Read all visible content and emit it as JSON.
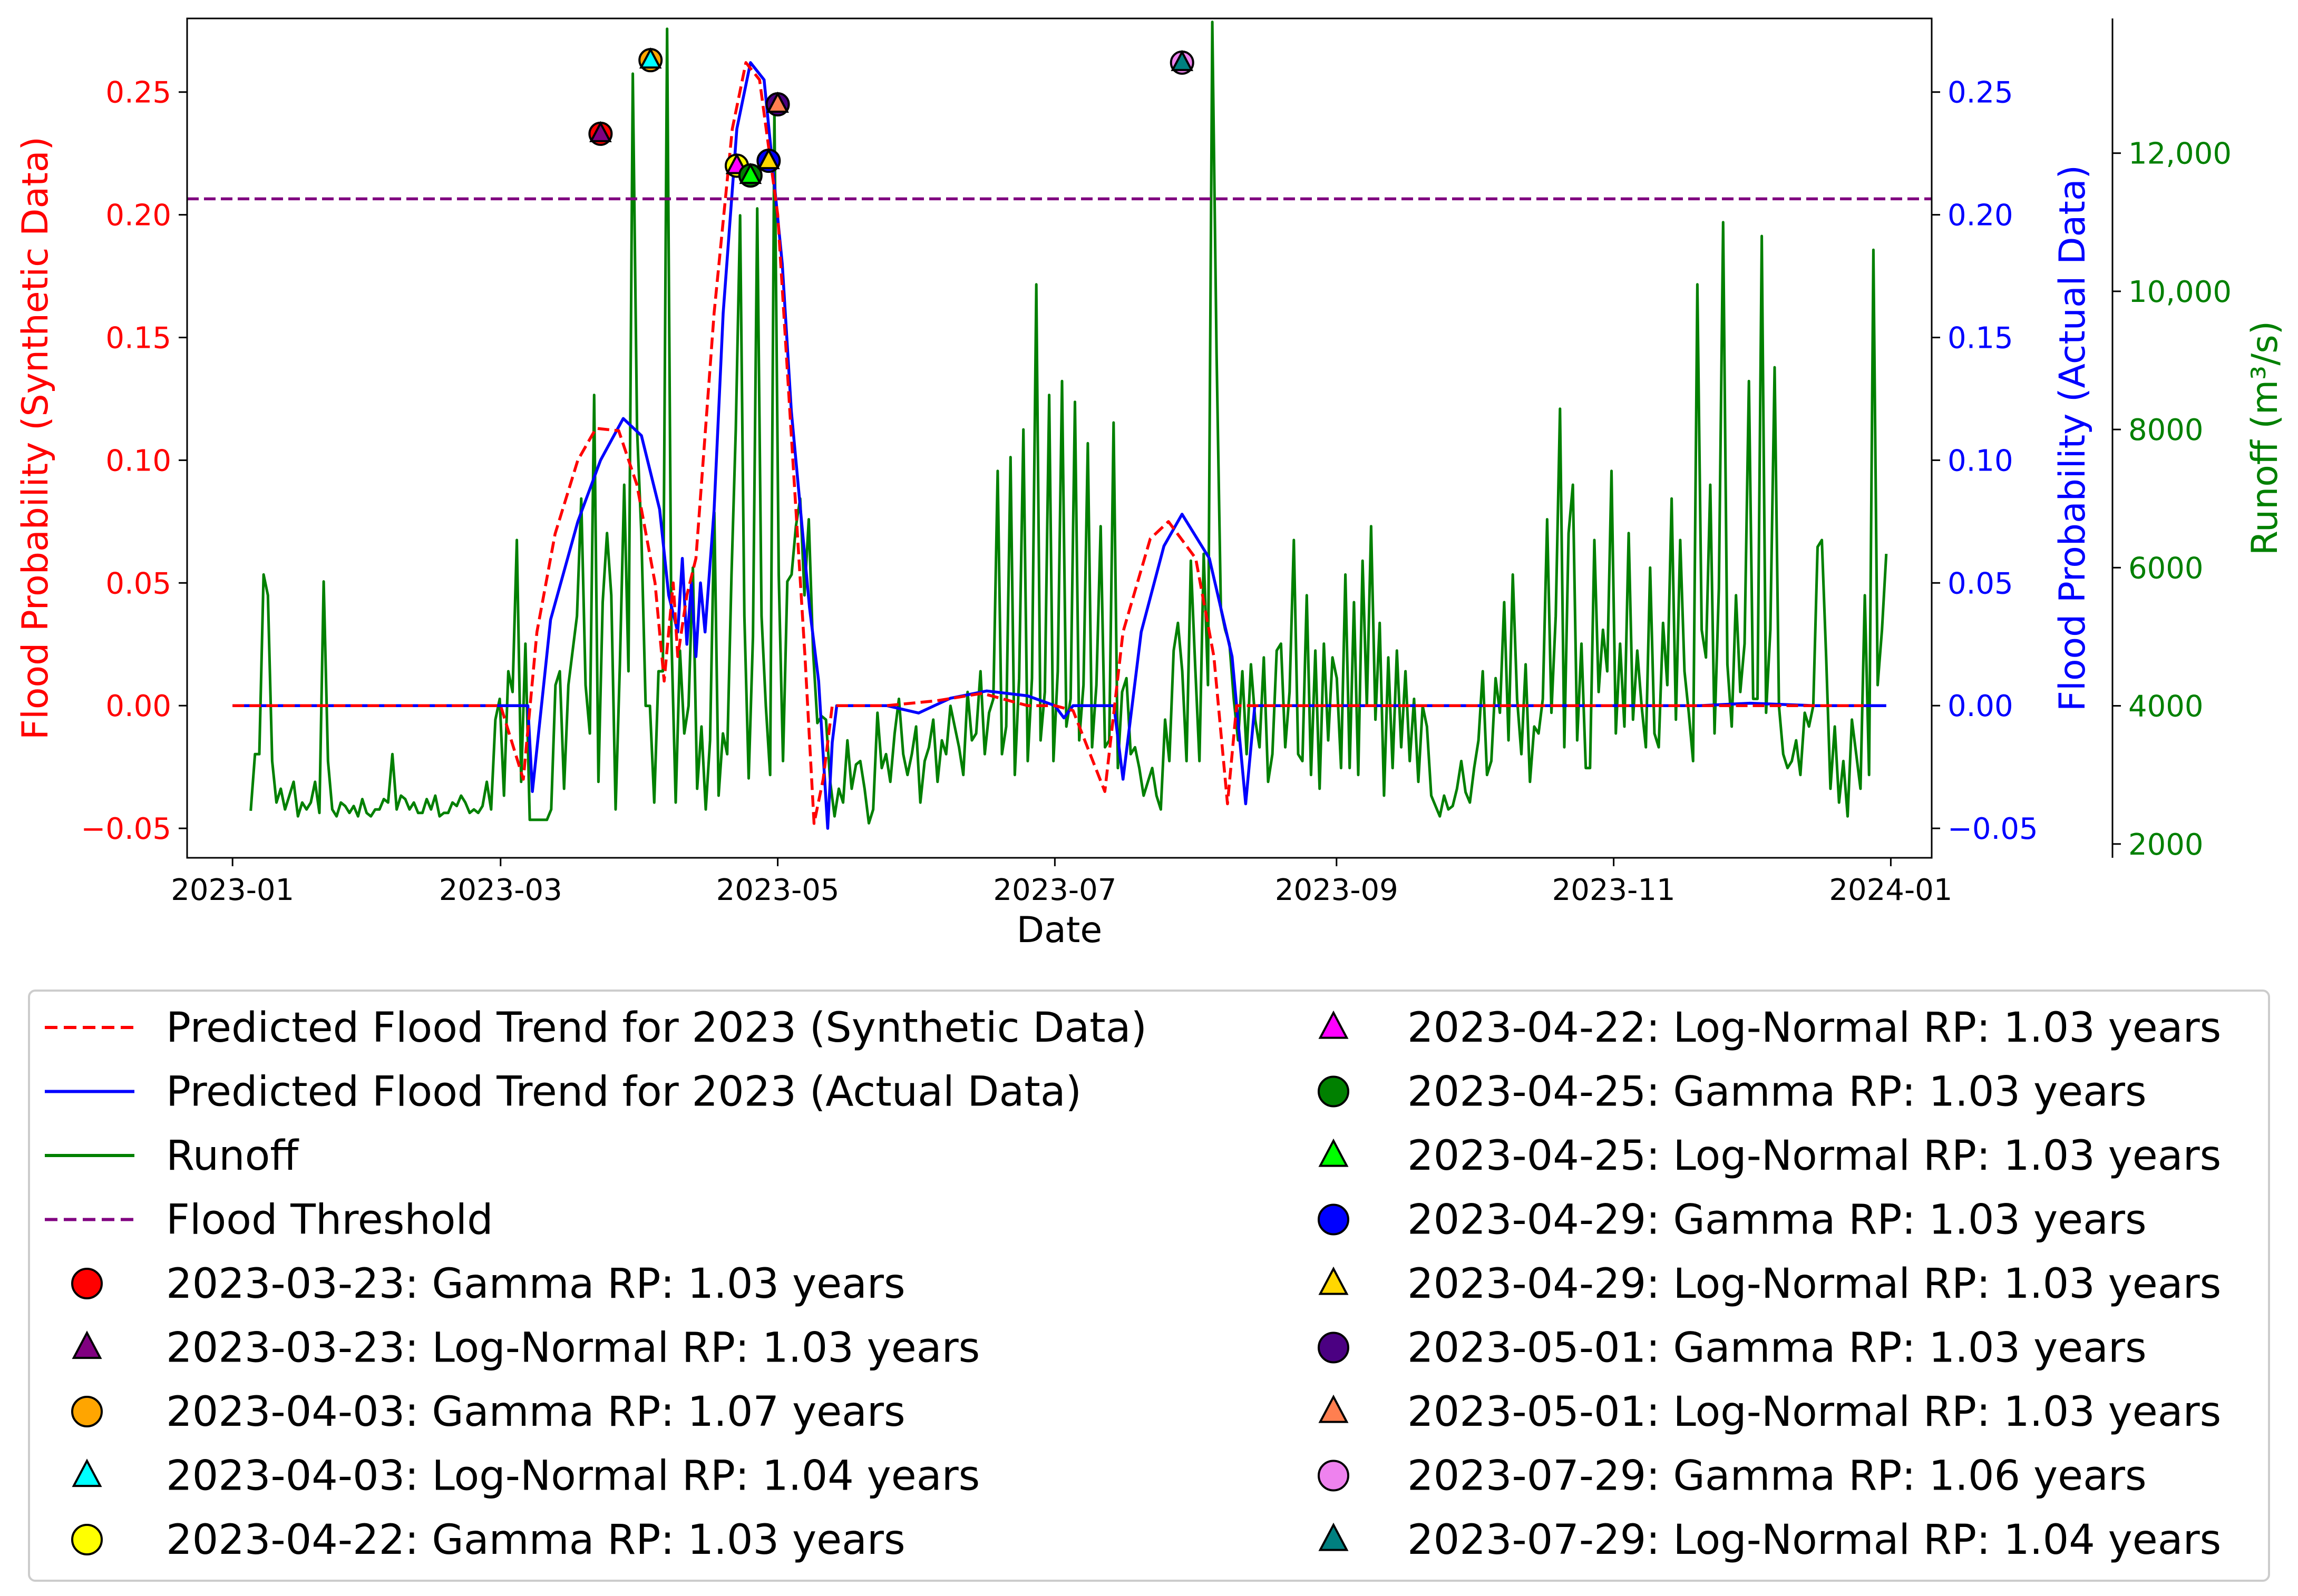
{
  "chart_data": {
    "type": "line",
    "xlabel": "Date",
    "y_left_label": "Flood Probability (Synthetic Data)",
    "y_right1_label": "Flood Probability (Actual Data)",
    "y_right2_label": "Runoff (m³/s)",
    "x_ticks": [
      "2023-01",
      "2023-03",
      "2023-05",
      "2023-07",
      "2023-09",
      "2023-11",
      "2024-01"
    ],
    "x_range": [
      "2022-12-22",
      "2024-01-10"
    ],
    "y_left_range": [
      -0.062,
      0.28
    ],
    "y_left_ticks": [
      "−0.05",
      "0.00",
      "0.05",
      "0.10",
      "0.15",
      "0.20",
      "0.25"
    ],
    "y_right1_range": [
      -0.062,
      0.28
    ],
    "y_right1_ticks": [
      "−0.05",
      "0.00",
      "0.05",
      "0.10",
      "0.15",
      "0.20",
      "0.25"
    ],
    "y_right2_range": [
      1800,
      13950
    ],
    "y_right2_ticks": [
      "2000",
      "4000",
      "6000",
      "8000",
      "10,000",
      "12,000"
    ],
    "colors": {
      "synthetic": "#ff0000",
      "actual": "#0000ff",
      "runoff": "#008000",
      "threshold": "#800080",
      "axis": "#000000"
    },
    "flood_threshold": 0.2065,
    "series": [
      {
        "name": "Predicted Flood Trend for 2023 (Synthetic Data)",
        "axis": "left",
        "style": "dashed",
        "points": [
          [
            "2023-01-01",
            0.0
          ],
          [
            "2023-03-01",
            0.0
          ],
          [
            "2023-03-06",
            -0.03
          ],
          [
            "2023-03-09",
            0.03
          ],
          [
            "2023-03-13",
            0.07
          ],
          [
            "2023-03-18",
            0.1
          ],
          [
            "2023-03-22",
            0.113
          ],
          [
            "2023-03-27",
            0.112
          ],
          [
            "2023-03-31",
            0.09
          ],
          [
            "2023-04-04",
            0.05
          ],
          [
            "2023-04-06",
            0.01
          ],
          [
            "2023-04-08",
            0.05
          ],
          [
            "2023-04-09",
            0.02
          ],
          [
            "2023-04-11",
            0.045
          ],
          [
            "2023-04-13",
            0.06
          ],
          [
            "2023-04-17",
            0.16
          ],
          [
            "2023-04-21",
            0.235
          ],
          [
            "2023-04-24",
            0.262
          ],
          [
            "2023-04-27",
            0.255
          ],
          [
            "2023-05-01",
            0.2
          ],
          [
            "2023-05-04",
            0.11
          ],
          [
            "2023-05-07",
            0.02
          ],
          [
            "2023-05-09",
            -0.048
          ],
          [
            "2023-05-11",
            -0.03
          ],
          [
            "2023-05-13",
            0.0
          ],
          [
            "2023-05-25",
            0.0
          ],
          [
            "2023-06-05",
            0.002
          ],
          [
            "2023-06-15",
            0.005
          ],
          [
            "2023-06-25",
            0.0
          ],
          [
            "2023-07-01",
            0.0
          ],
          [
            "2023-07-05",
            -0.002
          ],
          [
            "2023-07-12",
            -0.035
          ],
          [
            "2023-07-16",
            0.03
          ],
          [
            "2023-07-22",
            0.068
          ],
          [
            "2023-07-26",
            0.075
          ],
          [
            "2023-08-01",
            0.06
          ],
          [
            "2023-08-05",
            0.02
          ],
          [
            "2023-08-08",
            -0.04
          ],
          [
            "2023-08-10",
            0.0
          ],
          [
            "2023-12-20",
            0.0
          ],
          [
            "2023-12-26",
            0.0
          ]
        ]
      },
      {
        "name": "Predicted Flood Trend for 2023 (Actual Data)",
        "axis": "right1",
        "style": "solid",
        "points": [
          [
            "2023-01-01",
            0.0
          ],
          [
            "2023-03-07",
            0.0
          ],
          [
            "2023-03-08",
            -0.035
          ],
          [
            "2023-03-12",
            0.035
          ],
          [
            "2023-03-18",
            0.075
          ],
          [
            "2023-03-23",
            0.1
          ],
          [
            "2023-03-28",
            0.117
          ],
          [
            "2023-04-01",
            0.11
          ],
          [
            "2023-04-05",
            0.08
          ],
          [
            "2023-04-07",
            0.045
          ],
          [
            "2023-04-09",
            0.03
          ],
          [
            "2023-04-10",
            0.06
          ],
          [
            "2023-04-11",
            0.025
          ],
          [
            "2023-04-12",
            0.05
          ],
          [
            "2023-04-13",
            0.02
          ],
          [
            "2023-04-14",
            0.05
          ],
          [
            "2023-04-15",
            0.03
          ],
          [
            "2023-04-17",
            0.08
          ],
          [
            "2023-04-19",
            0.16
          ],
          [
            "2023-04-22",
            0.235
          ],
          [
            "2023-04-25",
            0.262
          ],
          [
            "2023-04-28",
            0.255
          ],
          [
            "2023-05-02",
            0.18
          ],
          [
            "2023-05-04",
            0.12
          ],
          [
            "2023-05-06",
            0.08
          ],
          [
            "2023-05-08",
            0.04
          ],
          [
            "2023-05-10",
            0.01
          ],
          [
            "2023-05-12",
            -0.05
          ],
          [
            "2023-05-13",
            -0.015
          ],
          [
            "2023-05-14",
            0.0
          ],
          [
            "2023-05-25",
            0.0
          ],
          [
            "2023-06-01",
            -0.003
          ],
          [
            "2023-06-08",
            0.003
          ],
          [
            "2023-06-16",
            0.006
          ],
          [
            "2023-06-25",
            0.004
          ],
          [
            "2023-07-01",
            0.0
          ],
          [
            "2023-07-03",
            -0.005
          ],
          [
            "2023-07-05",
            0.0
          ],
          [
            "2023-07-14",
            0.0
          ],
          [
            "2023-07-16",
            -0.03
          ],
          [
            "2023-07-20",
            0.03
          ],
          [
            "2023-07-25",
            0.065
          ],
          [
            "2023-07-29",
            0.078
          ],
          [
            "2023-08-04",
            0.06
          ],
          [
            "2023-08-09",
            0.02
          ],
          [
            "2023-08-12",
            -0.04
          ],
          [
            "2023-08-14",
            0.0
          ],
          [
            "2023-11-20",
            0.0
          ],
          [
            "2023-12-01",
            0.001
          ],
          [
            "2023-12-15",
            0.0
          ],
          [
            "2023-12-31",
            0.0
          ]
        ]
      },
      {
        "name": "Runoff",
        "axis": "right2",
        "style": "solid",
        "start": "2023-01-05",
        "end": "2023-12-31",
        "values": [
          2480,
          3300,
          3300,
          5900,
          5600,
          3200,
          2600,
          2800,
          2500,
          2700,
          2900,
          2400,
          2600,
          2500,
          2600,
          2900,
          2450,
          5800,
          3200,
          2500,
          2400,
          2600,
          2550,
          2450,
          2550,
          2400,
          2650,
          2450,
          2400,
          2500,
          2500,
          2650,
          2600,
          3300,
          2500,
          2700,
          2650,
          2500,
          2600,
          2450,
          2450,
          2650,
          2500,
          2700,
          2400,
          2450,
          2450,
          2600,
          2550,
          2700,
          2600,
          2450,
          2500,
          2450,
          2550,
          2900,
          2500,
          3800,
          4100,
          2700,
          4500,
          4200,
          6400,
          2900,
          4900,
          2350,
          2350,
          2350,
          2350,
          2350,
          2500,
          4300,
          4500,
          2800,
          4300,
          4800,
          5300,
          7000,
          4300,
          3600,
          8500,
          2900,
          5500,
          6500,
          5600,
          2500,
          4600,
          7200,
          4500,
          13150,
          8000,
          6500,
          4000,
          4000,
          2600,
          4500,
          4500,
          13800,
          5000,
          2600,
          4800,
          3600,
          4000,
          6000,
          2800,
          3700,
          2500,
          3500,
          6800,
          2700,
          3600,
          3300,
          5900,
          8000,
          11100,
          5300,
          2950,
          5000,
          11200,
          5300,
          4000,
          3000,
          12600,
          5900,
          3200,
          5800,
          5900,
          6600,
          7000,
          5600,
          6700,
          4800,
          3750,
          3850,
          3800,
          2900,
          2400,
          2800,
          2600,
          3500,
          2800,
          3150,
          3200,
          2800,
          2300,
          2500,
          3900,
          3100,
          3300,
          2900,
          3600,
          4100,
          3300,
          3000,
          3300,
          3700,
          2600,
          3200,
          3400,
          3800,
          2900,
          3500,
          3300,
          4000,
          3700,
          3400,
          3000,
          4200,
          3500,
          3600,
          4500,
          3300,
          3900,
          4100,
          7400,
          3300,
          3700,
          7600,
          3000,
          4400,
          8000,
          3200,
          4400,
          10100,
          3500,
          4200,
          8500,
          3200,
          4500,
          8700,
          3700,
          4100,
          8400,
          3500,
          4300,
          7800,
          3400,
          4300,
          6600,
          3400,
          3500,
          8100,
          3100,
          4200,
          4400,
          3300,
          3400,
          3100,
          2700,
          2900,
          3100,
          2700,
          2500,
          3800,
          3200,
          4800,
          5200,
          4500,
          3200,
          6100,
          4600,
          3200,
          6200,
          4300,
          13900,
          9100,
          5400,
          5100,
          4900,
          4100,
          3500,
          4500,
          3300,
          4600,
          3800,
          3400,
          4700,
          2900,
          3300,
          4800,
          4900,
          3400,
          4200,
          6400,
          3300,
          3200,
          5600,
          3000,
          4800,
          2800,
          4900,
          3500,
          4700,
          4400,
          3100,
          5900,
          3100,
          5500,
          3000,
          6100,
          4000,
          6600,
          3800,
          5200,
          2700,
          4700,
          3100,
          4800,
          3400,
          4500,
          3200,
          4100,
          2900,
          4000,
          3700,
          2700,
          2550,
          2400,
          2700,
          2500,
          2550,
          2800,
          3200,
          2750,
          2600,
          3100,
          3500,
          4500,
          3000,
          3200,
          4400,
          3900,
          5500,
          3500,
          5900,
          4100,
          3300,
          4600,
          2900,
          3700,
          3600,
          4100,
          6700,
          3900,
          5300,
          8300,
          3400,
          6500,
          7200,
          3500,
          4900,
          3100,
          3100,
          6400,
          4200,
          5100,
          4500,
          7400,
          3600,
          4900,
          3700,
          6500,
          3800,
          4800,
          4000,
          3400,
          6000,
          3600,
          3400,
          5200,
          4300,
          7000,
          3800,
          6400,
          4500,
          3900,
          3200,
          10100,
          5100,
          4700,
          7200,
          3600,
          5700,
          11000,
          4600,
          3700,
          5600,
          4200,
          4900,
          8700,
          4100,
          4100,
          10800,
          3900,
          5100,
          8900,
          4000,
          3300,
          3100,
          3200,
          3500,
          3000,
          3900,
          3700,
          4000,
          6300,
          6400,
          4700,
          2800,
          3700,
          2600,
          3200,
          2400,
          3800,
          3300,
          2800,
          5600,
          3000,
          10600,
          4300,
          5100,
          6200
        ]
      }
    ],
    "markers": [
      {
        "date": "2023-03-23",
        "y": 0.233,
        "shape": "circle",
        "color": "#ff0000",
        "label": "2023-03-23: Gamma RP: 1.03 years"
      },
      {
        "date": "2023-03-23",
        "y": 0.233,
        "shape": "triangle",
        "color": "#800080",
        "label": "2023-03-23: Log-Normal RP: 1.03 years"
      },
      {
        "date": "2023-04-03",
        "y": 0.263,
        "shape": "circle",
        "color": "#ffa500",
        "label": "2023-04-03: Gamma RP: 1.07 years"
      },
      {
        "date": "2023-04-03",
        "y": 0.263,
        "shape": "triangle",
        "color": "#00ffff",
        "label": "2023-04-03: Log-Normal RP: 1.04 years"
      },
      {
        "date": "2023-04-22",
        "y": 0.22,
        "shape": "circle",
        "color": "#ffff00",
        "label": "2023-04-22: Gamma RP: 1.03 years"
      },
      {
        "date": "2023-04-22",
        "y": 0.22,
        "shape": "triangle",
        "color": "#ff00ff",
        "label": "2023-04-22: Log-Normal RP: 1.03 years"
      },
      {
        "date": "2023-04-25",
        "y": 0.216,
        "shape": "circle",
        "color": "#008000",
        "label": "2023-04-25: Gamma RP: 1.03 years"
      },
      {
        "date": "2023-04-25",
        "y": 0.216,
        "shape": "triangle",
        "color": "#00ff00",
        "label": "2023-04-25: Log-Normal RP: 1.03 years"
      },
      {
        "date": "2023-04-29",
        "y": 0.222,
        "shape": "circle",
        "color": "#0000ff",
        "label": "2023-04-29: Gamma RP: 1.03 years"
      },
      {
        "date": "2023-04-29",
        "y": 0.222,
        "shape": "triangle",
        "color": "#ffd700",
        "label": "2023-04-29: Log-Normal RP: 1.03 years"
      },
      {
        "date": "2023-05-01",
        "y": 0.245,
        "shape": "circle",
        "color": "#4b0082",
        "label": "2023-05-01: Gamma RP: 1.03 years"
      },
      {
        "date": "2023-05-01",
        "y": 0.245,
        "shape": "triangle",
        "color": "#ff7f50",
        "label": "2023-05-01: Log-Normal RP: 1.03 years"
      },
      {
        "date": "2023-07-29",
        "y": 0.262,
        "shape": "circle",
        "color": "#ee82ee",
        "label": "2023-07-29: Gamma RP: 1.06 years"
      },
      {
        "date": "2023-07-29",
        "y": 0.262,
        "shape": "triangle",
        "color": "#008080",
        "label": "2023-07-29: Log-Normal RP: 1.04 years"
      }
    ],
    "legend": {
      "placement": "bottom",
      "lines": [
        {
          "label": "Predicted Flood Trend for 2023 (Synthetic Data)",
          "color": "#ff0000",
          "style": "dashed"
        },
        {
          "label": "Predicted Flood Trend for 2023 (Actual Data)",
          "color": "#0000ff",
          "style": "solid"
        },
        {
          "label": "Runoff",
          "color": "#008000",
          "style": "solid"
        },
        {
          "label": "Flood Threshold",
          "color": "#800080",
          "style": "dashed"
        }
      ]
    }
  }
}
